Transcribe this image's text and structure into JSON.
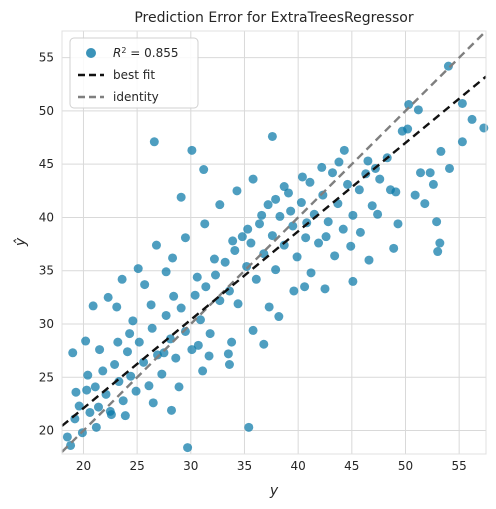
{
  "chart_data": {
    "type": "scatter",
    "title": "Prediction Error for ExtraTreesRegressor",
    "xlabel": "y",
    "ylabel": "ŷ",
    "xlim": [
      18,
      57.5
    ],
    "ylim": [
      17.8,
      57.5
    ],
    "xticks": [
      "20",
      "25",
      "30",
      "35",
      "40",
      "45",
      "50",
      "55"
    ],
    "yticks": [
      "20",
      "25",
      "30",
      "35",
      "40",
      "45",
      "50",
      "55"
    ],
    "grid": true,
    "legend_position": "top-left",
    "legend": {
      "r2_prefix": "R",
      "r2_sup": "2",
      "r2_value": " = 0.855",
      "best_fit": "best fit",
      "identity": "identity"
    },
    "best_fit_line": {
      "intercept": 5.5,
      "slope": 0.83
    },
    "identity_line": {
      "intercept": 0,
      "slope": 1
    },
    "colors": {
      "points": "#0a78a8",
      "best_fit": "#111111",
      "identity": "#7f7f7f",
      "grid": "#d9d9d9"
    },
    "points": [
      [
        18.5,
        19.4
      ],
      [
        18.8,
        18.6
      ],
      [
        19.2,
        21.1
      ],
      [
        19.6,
        22.3
      ],
      [
        19.9,
        19.8
      ],
      [
        20.3,
        23.8
      ],
      [
        20.6,
        21.7
      ],
      [
        21.1,
        24.1
      ],
      [
        21.4,
        22.2
      ],
      [
        21.8,
        25.6
      ],
      [
        22.1,
        23.4
      ],
      [
        22.6,
        21.5
      ],
      [
        22.9,
        26.2
      ],
      [
        23.3,
        24.6
      ],
      [
        23.7,
        22.8
      ],
      [
        24.1,
        27.4
      ],
      [
        24.4,
        25.1
      ],
      [
        24.9,
        23.7
      ],
      [
        25.2,
        28.3
      ],
      [
        25.6,
        26.4
      ],
      [
        26.1,
        24.2
      ],
      [
        26.4,
        29.6
      ],
      [
        26.9,
        27.1
      ],
      [
        27.3,
        25.3
      ],
      [
        27.7,
        30.8
      ],
      [
        28.1,
        28.6
      ],
      [
        28.6,
        26.8
      ],
      [
        29.1,
        31.5
      ],
      [
        29.5,
        29.3
      ],
      [
        30.1,
        27.6
      ],
      [
        30.4,
        32.7
      ],
      [
        30.9,
        30.4
      ],
      [
        31.4,
        33.5
      ],
      [
        31.8,
        29.1
      ],
      [
        32.3,
        34.6
      ],
      [
        32.7,
        32.2
      ],
      [
        33.2,
        35.8
      ],
      [
        33.6,
        33.1
      ],
      [
        34.1,
        36.9
      ],
      [
        34.4,
        31.9
      ],
      [
        34.8,
        38.2
      ],
      [
        35.2,
        35.4
      ],
      [
        35.6,
        37.6
      ],
      [
        36.1,
        34.2
      ],
      [
        36.4,
        39.4
      ],
      [
        36.8,
        36.6
      ],
      [
        37.2,
        41.2
      ],
      [
        37.6,
        38.3
      ],
      [
        37.9,
        35.1
      ],
      [
        38.3,
        40.1
      ],
      [
        38.7,
        37.4
      ],
      [
        39.1,
        42.3
      ],
      [
        39.5,
        39.2
      ],
      [
        39.9,
        36.3
      ],
      [
        40.3,
        41.4
      ],
      [
        40.7,
        38.1
      ],
      [
        41.1,
        43.3
      ],
      [
        41.5,
        40.3
      ],
      [
        41.9,
        37.6
      ],
      [
        42.3,
        42.1
      ],
      [
        42.8,
        39.6
      ],
      [
        43.2,
        44.2
      ],
      [
        43.7,
        41.3
      ],
      [
        44.2,
        38.9
      ],
      [
        44.6,
        43.1
      ],
      [
        45.1,
        40.2
      ],
      [
        45.7,
        42.6
      ],
      [
        46.3,
        44.1
      ],
      [
        46.9,
        41.1
      ],
      [
        47.6,
        43.6
      ],
      [
        48.3,
        45.6
      ],
      [
        49.1,
        42.4
      ],
      [
        50.2,
        48.3
      ],
      [
        51.4,
        44.2
      ],
      [
        52.6,
        43.1
      ],
      [
        53.3,
        46.2
      ],
      [
        54.1,
        44.6
      ],
      [
        55.3,
        47.1
      ],
      [
        56.2,
        49.2
      ],
      [
        57.3,
        48.4
      ],
      [
        50.3,
        50.6
      ],
      [
        51.2,
        50.1
      ],
      [
        52.9,
        39.6
      ],
      [
        53.2,
        37.6
      ],
      [
        53.0,
        36.8
      ],
      [
        54.0,
        54.2
      ],
      [
        30.1,
        46.3
      ],
      [
        37.6,
        47.6
      ],
      [
        26.6,
        47.1
      ],
      [
        31.2,
        44.5
      ],
      [
        29.7,
        18.4
      ],
      [
        35.4,
        20.3
      ],
      [
        22.5,
        21.8
      ],
      [
        28.2,
        21.9
      ],
      [
        33.6,
        26.2
      ],
      [
        38.2,
        30.7
      ],
      [
        31.7,
        27.0
      ],
      [
        36.8,
        28.1
      ],
      [
        40.6,
        33.5
      ],
      [
        42.5,
        33.3
      ],
      [
        45.1,
        34.0
      ],
      [
        46.6,
        36.0
      ],
      [
        48.9,
        37.1
      ],
      [
        44.3,
        46.3
      ],
      [
        46.5,
        45.3
      ],
      [
        49.7,
        48.1
      ],
      [
        33.8,
        28.3
      ],
      [
        30.7,
        28.0
      ],
      [
        27.5,
        27.3
      ],
      [
        24.3,
        29.1
      ],
      [
        20.9,
        31.7
      ],
      [
        20.2,
        28.4
      ],
      [
        19.0,
        27.3
      ],
      [
        22.3,
        32.5
      ],
      [
        23.6,
        34.2
      ],
      [
        25.7,
        33.7
      ],
      [
        27.7,
        34.9
      ],
      [
        28.3,
        36.2
      ],
      [
        29.5,
        38.1
      ],
      [
        31.3,
        39.4
      ],
      [
        32.7,
        41.2
      ],
      [
        34.3,
        42.5
      ],
      [
        35.8,
        43.6
      ],
      [
        29.1,
        41.9
      ],
      [
        26.8,
        37.4
      ],
      [
        25.1,
        35.2
      ],
      [
        23.1,
        31.6
      ],
      [
        38.7,
        42.9
      ],
      [
        40.4,
        43.8
      ],
      [
        42.2,
        44.7
      ],
      [
        43.8,
        45.2
      ],
      [
        47.2,
        44.6
      ],
      [
        48.6,
        42.6
      ],
      [
        50.9,
        42.1
      ],
      [
        52.3,
        44.2
      ],
      [
        55.3,
        50.7
      ],
      [
        19.3,
        23.6
      ],
      [
        20.4,
        25.2
      ],
      [
        21.5,
        27.6
      ],
      [
        23.2,
        28.3
      ],
      [
        24.6,
        30.3
      ],
      [
        26.3,
        31.8
      ],
      [
        28.4,
        32.6
      ],
      [
        30.6,
        34.4
      ],
      [
        32.2,
        36.1
      ],
      [
        33.9,
        37.8
      ],
      [
        35.3,
        38.9
      ],
      [
        36.6,
        40.2
      ],
      [
        37.9,
        41.7
      ],
      [
        39.3,
        40.6
      ],
      [
        40.8,
        39.5
      ],
      [
        42.6,
        38.2
      ],
      [
        44.9,
        37.3
      ],
      [
        21.2,
        20.3
      ],
      [
        23.9,
        21.4
      ],
      [
        26.5,
        22.6
      ],
      [
        28.9,
        24.1
      ],
      [
        31.1,
        25.6
      ],
      [
        33.5,
        27.2
      ],
      [
        35.8,
        29.4
      ],
      [
        37.3,
        31.6
      ],
      [
        39.6,
        33.1
      ],
      [
        41.2,
        34.8
      ],
      [
        43.4,
        36.4
      ],
      [
        45.8,
        38.6
      ],
      [
        47.4,
        40.3
      ],
      [
        49.3,
        39.4
      ],
      [
        51.8,
        41.3
      ]
    ]
  }
}
